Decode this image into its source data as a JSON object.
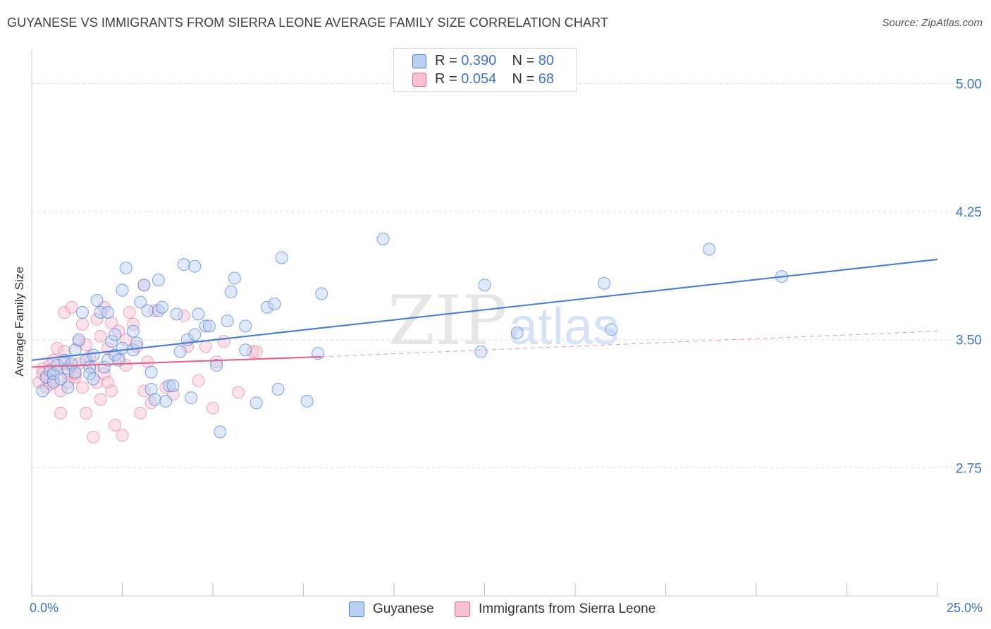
{
  "title": "GUYANESE VS IMMIGRANTS FROM SIERRA LEONE AVERAGE FAMILY SIZE CORRELATION CHART",
  "source": "Source: ZipAtlas.com",
  "watermark": {
    "zip": "ZIP",
    "atlas": "atlas"
  },
  "legend": {
    "r_label": "R =",
    "n_label": "N =",
    "series1": {
      "r": "0.390",
      "n": "80"
    },
    "series2": {
      "r": "0.054",
      "n": "68"
    }
  },
  "chart_data": {
    "type": "scatter",
    "title": "GUYANESE VS IMMIGRANTS FROM SIERRA LEONE AVERAGE FAMILY SIZE CORRELATION CHART",
    "xlabel": "",
    "ylabel": "Average Family Size",
    "xlim": [
      0,
      25
    ],
    "ylim": [
      2.0,
      5.2
    ],
    "x_tick_labels": [
      "0.0%",
      "25.0%"
    ],
    "y_ticks": [
      2.75,
      3.5,
      4.25,
      5.0
    ],
    "y_tick_labels": [
      "2.75",
      "3.50",
      "4.25",
      "5.00"
    ],
    "grid": "horizontal dashed",
    "colors": {
      "blue": "#4a7fd4",
      "blue_fill": "#b9cff5",
      "pink": "#e0668f",
      "pink_fill": "#f7bfd0",
      "tick_label": "#3d73c9"
    },
    "series": [
      {
        "name": "Guyanese",
        "r": 0.39,
        "n": 80,
        "trend": {
          "x": [
            0,
            25
          ],
          "y": [
            3.38,
            3.97
          ],
          "style": "solid"
        },
        "points": [
          [
            0.3,
            3.2
          ],
          [
            0.4,
            3.28
          ],
          [
            0.5,
            3.32
          ],
          [
            0.6,
            3.25
          ],
          [
            0.6,
            3.3
          ],
          [
            0.7,
            3.35
          ],
          [
            0.8,
            3.27
          ],
          [
            0.9,
            3.38
          ],
          [
            1.0,
            3.33
          ],
          [
            1.1,
            3.36
          ],
          [
            1.2,
            3.31
          ],
          [
            1.2,
            3.44
          ],
          [
            1.3,
            3.5
          ],
          [
            1.4,
            3.66
          ],
          [
            1.5,
            3.38
          ],
          [
            1.6,
            3.34
          ],
          [
            1.6,
            3.3
          ],
          [
            1.7,
            3.27
          ],
          [
            1.7,
            3.41
          ],
          [
            1.8,
            3.73
          ],
          [
            1.9,
            3.66
          ],
          [
            2.0,
            3.34
          ],
          [
            2.1,
            3.38
          ],
          [
            2.1,
            3.66
          ],
          [
            2.2,
            3.49
          ],
          [
            2.3,
            3.53
          ],
          [
            2.3,
            3.41
          ],
          [
            2.4,
            3.38
          ],
          [
            2.5,
            3.45
          ],
          [
            2.5,
            3.79
          ],
          [
            2.6,
            3.92
          ],
          [
            2.8,
            3.55
          ],
          [
            2.8,
            3.44
          ],
          [
            2.9,
            3.48
          ],
          [
            3.0,
            3.72
          ],
          [
            3.1,
            3.82
          ],
          [
            3.2,
            3.67
          ],
          [
            3.3,
            3.31
          ],
          [
            3.3,
            3.21
          ],
          [
            3.4,
            3.15
          ],
          [
            3.5,
            3.67
          ],
          [
            3.6,
            3.69
          ],
          [
            3.7,
            3.14
          ],
          [
            3.8,
            3.23
          ],
          [
            3.9,
            3.23
          ],
          [
            4.0,
            3.65
          ],
          [
            4.1,
            3.43
          ],
          [
            4.2,
            3.94
          ],
          [
            4.3,
            3.5
          ],
          [
            4.4,
            3.16
          ],
          [
            4.5,
            3.93
          ],
          [
            4.5,
            3.53
          ],
          [
            4.6,
            3.65
          ],
          [
            4.8,
            3.58
          ],
          [
            4.9,
            3.58
          ],
          [
            5.1,
            3.35
          ],
          [
            5.2,
            2.96
          ],
          [
            5.4,
            3.61
          ],
          [
            5.5,
            3.78
          ],
          [
            5.6,
            3.86
          ],
          [
            5.9,
            3.58
          ],
          [
            5.9,
            3.44
          ],
          [
            6.2,
            3.13
          ],
          [
            6.5,
            3.69
          ],
          [
            6.7,
            3.71
          ],
          [
            6.8,
            3.21
          ],
          [
            6.9,
            3.98
          ],
          [
            7.6,
            3.14
          ],
          [
            7.9,
            3.42
          ],
          [
            8.0,
            3.77
          ],
          [
            9.7,
            4.09
          ],
          [
            12.4,
            3.43
          ],
          [
            12.5,
            3.82
          ],
          [
            13.4,
            3.54
          ],
          [
            15.8,
            3.83
          ],
          [
            16.0,
            3.56
          ],
          [
            18.7,
            4.03
          ],
          [
            20.7,
            3.87
          ],
          [
            3.5,
            3.85
          ],
          [
            1.0,
            3.22
          ]
        ]
      },
      {
        "name": "Immigrants from Sierra Leone",
        "r": 0.054,
        "n": 68,
        "trend": {
          "x": [
            0,
            8.0
          ],
          "y": [
            3.34,
            3.4
          ],
          "style": "solid",
          "extended_x": [
            8.0,
            25
          ],
          "extended_y": [
            3.4,
            3.55
          ],
          "extended_style": "dashed"
        },
        "points": [
          [
            0.2,
            3.25
          ],
          [
            0.3,
            3.3
          ],
          [
            0.3,
            3.33
          ],
          [
            0.4,
            3.22
          ],
          [
            0.4,
            3.28
          ],
          [
            0.5,
            3.35
          ],
          [
            0.5,
            3.24
          ],
          [
            0.6,
            3.38
          ],
          [
            0.6,
            3.26
          ],
          [
            0.7,
            3.45
          ],
          [
            0.7,
            3.32
          ],
          [
            0.8,
            3.07
          ],
          [
            0.8,
            3.2
          ],
          [
            0.9,
            3.66
          ],
          [
            0.9,
            3.43
          ],
          [
            1.0,
            3.3
          ],
          [
            1.0,
            3.25
          ],
          [
            1.1,
            3.69
          ],
          [
            1.1,
            3.35
          ],
          [
            1.2,
            3.28
          ],
          [
            1.3,
            3.49
          ],
          [
            1.3,
            3.36
          ],
          [
            1.4,
            3.22
          ],
          [
            1.4,
            3.59
          ],
          [
            1.5,
            3.07
          ],
          [
            1.5,
            3.47
          ],
          [
            1.6,
            3.4
          ],
          [
            1.7,
            2.93
          ],
          [
            1.7,
            3.34
          ],
          [
            1.8,
            3.25
          ],
          [
            1.8,
            3.62
          ],
          [
            1.9,
            3.15
          ],
          [
            1.9,
            3.52
          ],
          [
            2.0,
            3.69
          ],
          [
            2.0,
            3.3
          ],
          [
            2.1,
            3.45
          ],
          [
            2.1,
            3.25
          ],
          [
            2.2,
            3.6
          ],
          [
            2.2,
            3.2
          ],
          [
            2.3,
            3.0
          ],
          [
            2.4,
            3.4
          ],
          [
            2.4,
            3.55
          ],
          [
            2.5,
            2.94
          ],
          [
            2.6,
            3.35
          ],
          [
            2.6,
            3.5
          ],
          [
            2.7,
            3.66
          ],
          [
            2.8,
            3.59
          ],
          [
            2.9,
            3.46
          ],
          [
            3.0,
            3.07
          ],
          [
            3.1,
            3.82
          ],
          [
            3.1,
            3.2
          ],
          [
            3.2,
            3.37
          ],
          [
            3.3,
            3.13
          ],
          [
            3.4,
            3.67
          ],
          [
            3.7,
            3.22
          ],
          [
            3.9,
            3.18
          ],
          [
            4.2,
            3.64
          ],
          [
            4.3,
            3.46
          ],
          [
            4.6,
            3.26
          ],
          [
            4.8,
            3.46
          ],
          [
            5.0,
            3.1
          ],
          [
            5.1,
            3.37
          ],
          [
            5.3,
            3.49
          ],
          [
            5.7,
            3.19
          ],
          [
            6.1,
            3.43
          ],
          [
            6.2,
            3.43
          ],
          [
            1.2,
            3.3
          ],
          [
            0.9,
            3.36
          ]
        ]
      }
    ]
  },
  "legend_bottom": [
    "Guyanese",
    "Immigrants from Sierra Leone"
  ]
}
